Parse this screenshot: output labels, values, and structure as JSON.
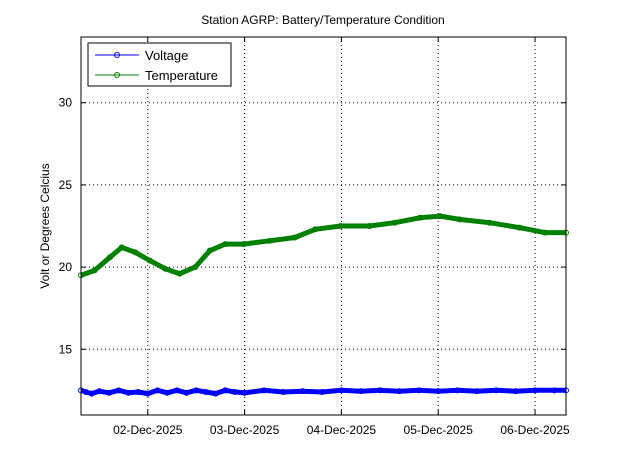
{
  "chart_data": {
    "type": "line",
    "title": "Station AGRP: Battery/Temperature Condition",
    "xlabel": "",
    "ylabel": "Volt or Degrees Celcius",
    "xlim": [
      1.31,
      6.32
    ],
    "ylim": [
      11,
      34
    ],
    "x_unit": "day of December 2025",
    "grid": true,
    "legend_position": "top-left",
    "xticks": [
      2,
      3,
      4,
      5,
      6
    ],
    "xtick_labels": [
      "02-Dec-2025",
      "03-Dec-2025",
      "04-Dec-2025",
      "05-Dec-2025",
      "06-Dec-2025"
    ],
    "yticks": [
      15,
      20,
      25,
      30
    ],
    "ytick_labels": [
      "15",
      "20",
      "25",
      "30"
    ],
    "series": [
      {
        "name": "Voltage",
        "color": "#0000ff",
        "x": [
          1.31,
          1.36,
          1.42,
          1.5,
          1.6,
          1.7,
          1.8,
          1.9,
          2.0,
          2.1,
          2.2,
          2.3,
          2.4,
          2.5,
          2.6,
          2.7,
          2.8,
          2.9,
          3.0,
          3.2,
          3.4,
          3.6,
          3.8,
          4.0,
          4.2,
          4.4,
          4.6,
          4.8,
          5.0,
          5.2,
          5.4,
          5.6,
          5.8,
          6.0,
          6.2,
          6.32
        ],
        "y": [
          12.5,
          12.4,
          12.3,
          12.45,
          12.35,
          12.5,
          12.35,
          12.4,
          12.3,
          12.5,
          12.35,
          12.5,
          12.35,
          12.5,
          12.4,
          12.3,
          12.5,
          12.4,
          12.35,
          12.5,
          12.4,
          12.45,
          12.4,
          12.5,
          12.45,
          12.5,
          12.45,
          12.5,
          12.45,
          12.5,
          12.45,
          12.5,
          12.45,
          12.5,
          12.5,
          12.5
        ]
      },
      {
        "name": "Temperature",
        "color": "#008000",
        "x": [
          1.31,
          1.45,
          1.61,
          1.73,
          1.87,
          2.02,
          2.18,
          2.33,
          2.49,
          2.64,
          2.8,
          2.99,
          3.26,
          3.52,
          3.73,
          3.99,
          4.29,
          4.55,
          4.81,
          5.02,
          5.22,
          5.53,
          5.84,
          6.1,
          6.32
        ],
        "y": [
          19.5,
          19.8,
          20.6,
          21.2,
          20.9,
          20.4,
          19.9,
          19.6,
          20.0,
          21.0,
          21.4,
          21.4,
          21.6,
          21.8,
          22.3,
          22.5,
          22.5,
          22.7,
          23.0,
          23.1,
          22.9,
          22.7,
          22.4,
          22.1,
          22.1
        ]
      }
    ]
  }
}
